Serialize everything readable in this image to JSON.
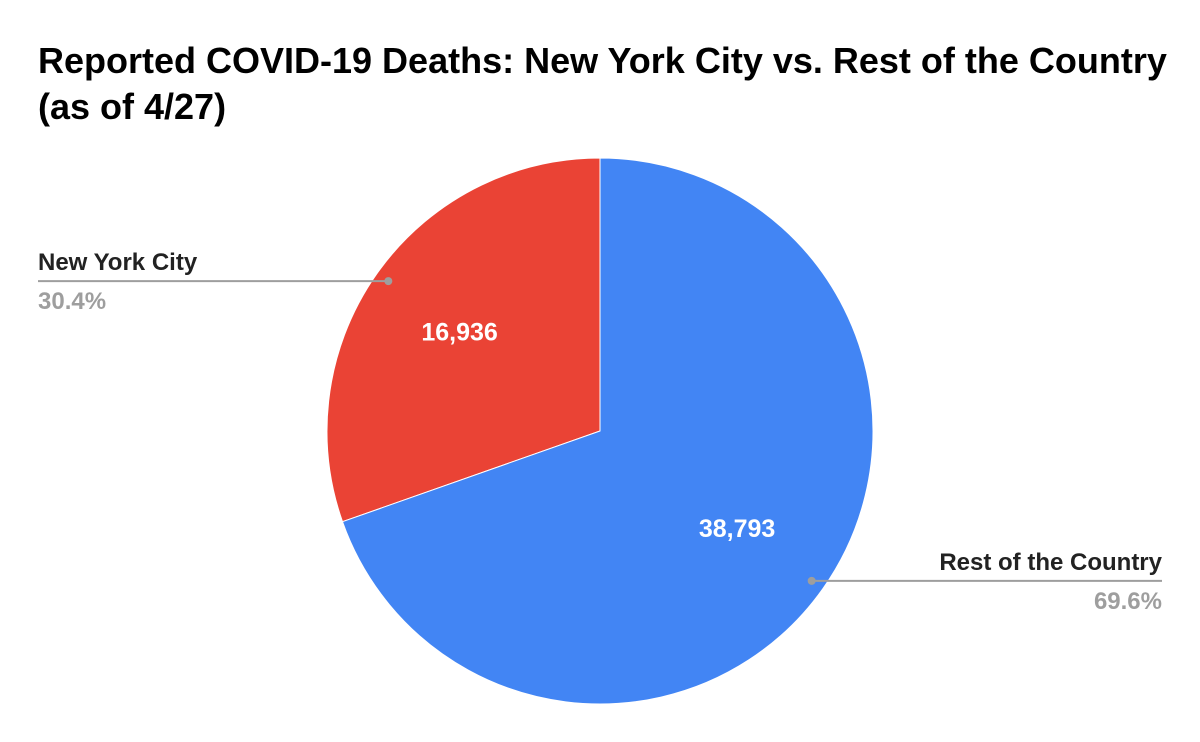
{
  "chart_data": {
    "type": "pie",
    "title": "Reported COVID-19 Deaths: New York City vs. Rest of the Country (as of 4/27)",
    "slices": [
      {
        "label": "New York City",
        "value": 16936,
        "value_label": "16,936",
        "percent_label": "30.4%",
        "color": "#EA4335"
      },
      {
        "label": "Rest of the Country",
        "value": 38793,
        "value_label": "38,793",
        "percent_label": "69.6%",
        "color": "#4285F4"
      }
    ],
    "start_angle": "12 o'clock",
    "direction": "counter-clockwise from the top for the first slice",
    "legend": "none (labels with leader lines)"
  }
}
